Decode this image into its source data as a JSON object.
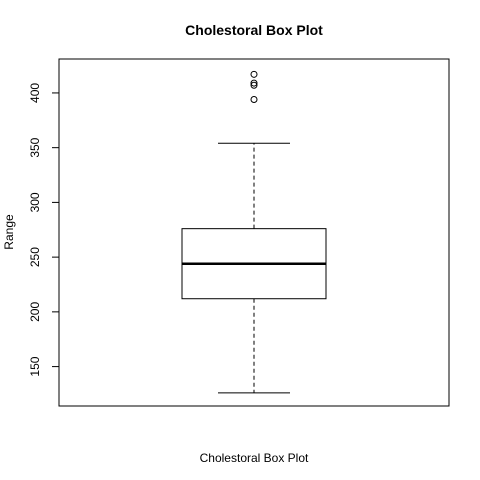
{
  "chart_data": {
    "type": "box",
    "title": "Cholestoral Box Plot",
    "xlabel": "Cholestoral Box Plot",
    "ylabel": "Range",
    "ylim": [
      114,
      431
    ],
    "yticks": [
      150,
      200,
      250,
      300,
      350,
      400
    ],
    "grid": false,
    "legend": "none",
    "series": [
      {
        "min": 126,
        "q1": 212,
        "median": 244,
        "q3": 276,
        "max": 354,
        "outliers": [
          417,
          409,
          407,
          394
        ]
      }
    ]
  }
}
